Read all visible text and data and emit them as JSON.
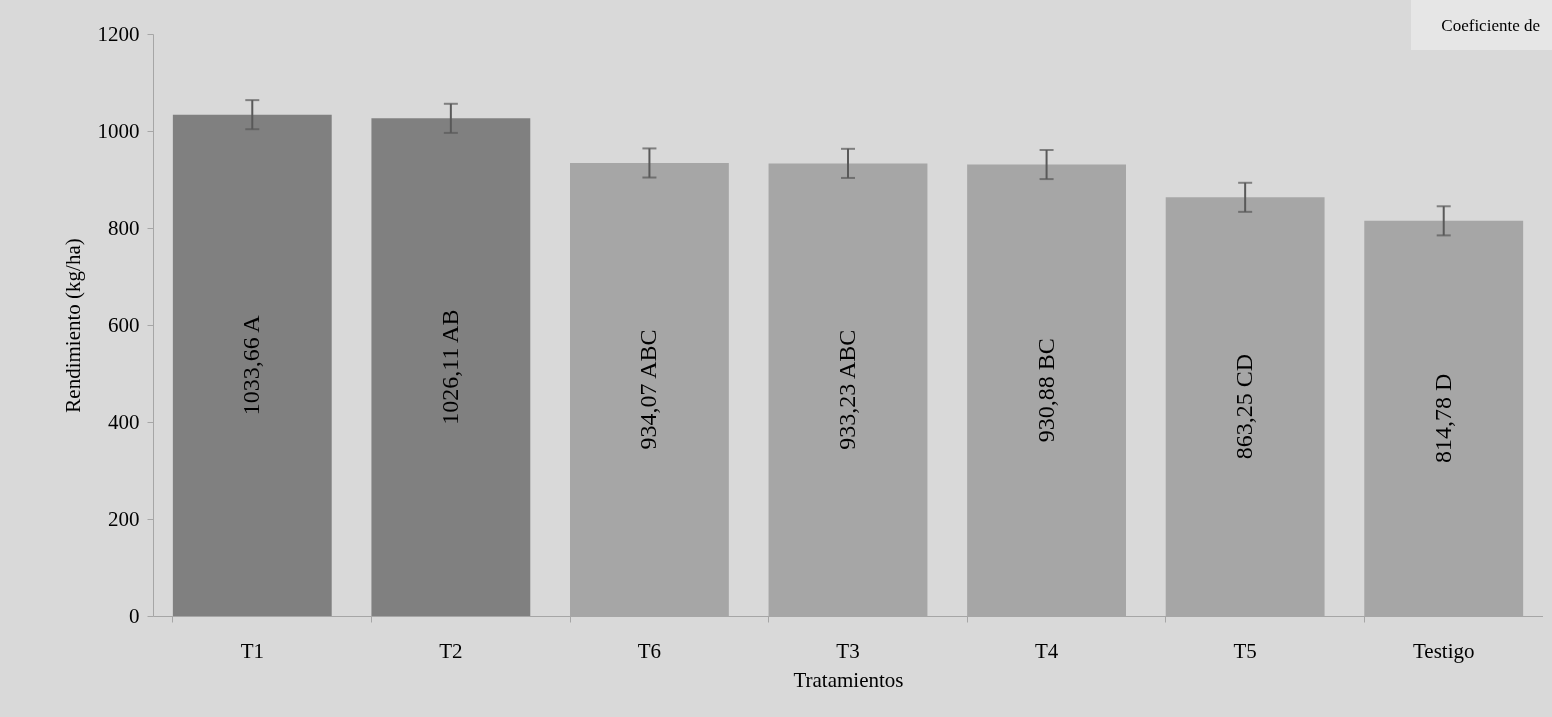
{
  "chart_data": {
    "type": "bar",
    "xlabel": "Tratamientos",
    "ylabel": "Rendimiento (kg/ha)",
    "categories": [
      "T1",
      "T2",
      "T6",
      "T3",
      "T4",
      "T5",
      "Testigo"
    ],
    "values": [
      1033.66,
      1026.11,
      934.07,
      933.23,
      930.88,
      863.25,
      814.78
    ],
    "colors": [
      "#808080",
      "#808080",
      "#a6a6a6",
      "#a6a6a6",
      "#a6a6a6",
      "#a6a6a6",
      "#a6a6a6"
    ],
    "errors": [
      30,
      30,
      30,
      30,
      30,
      30,
      30
    ],
    "value_labels": [
      "1033,66  A",
      "1026,11  AB",
      "934,07  ABC",
      "933,23  ABC",
      "930,88  BC",
      "863,25  CD",
      "814,78  D"
    ],
    "ylim": [
      0,
      1200
    ],
    "yticks": [
      0,
      200,
      400,
      600,
      800,
      1000,
      1200
    ],
    "annotations": [
      "Coeficiente de"
    ]
  }
}
